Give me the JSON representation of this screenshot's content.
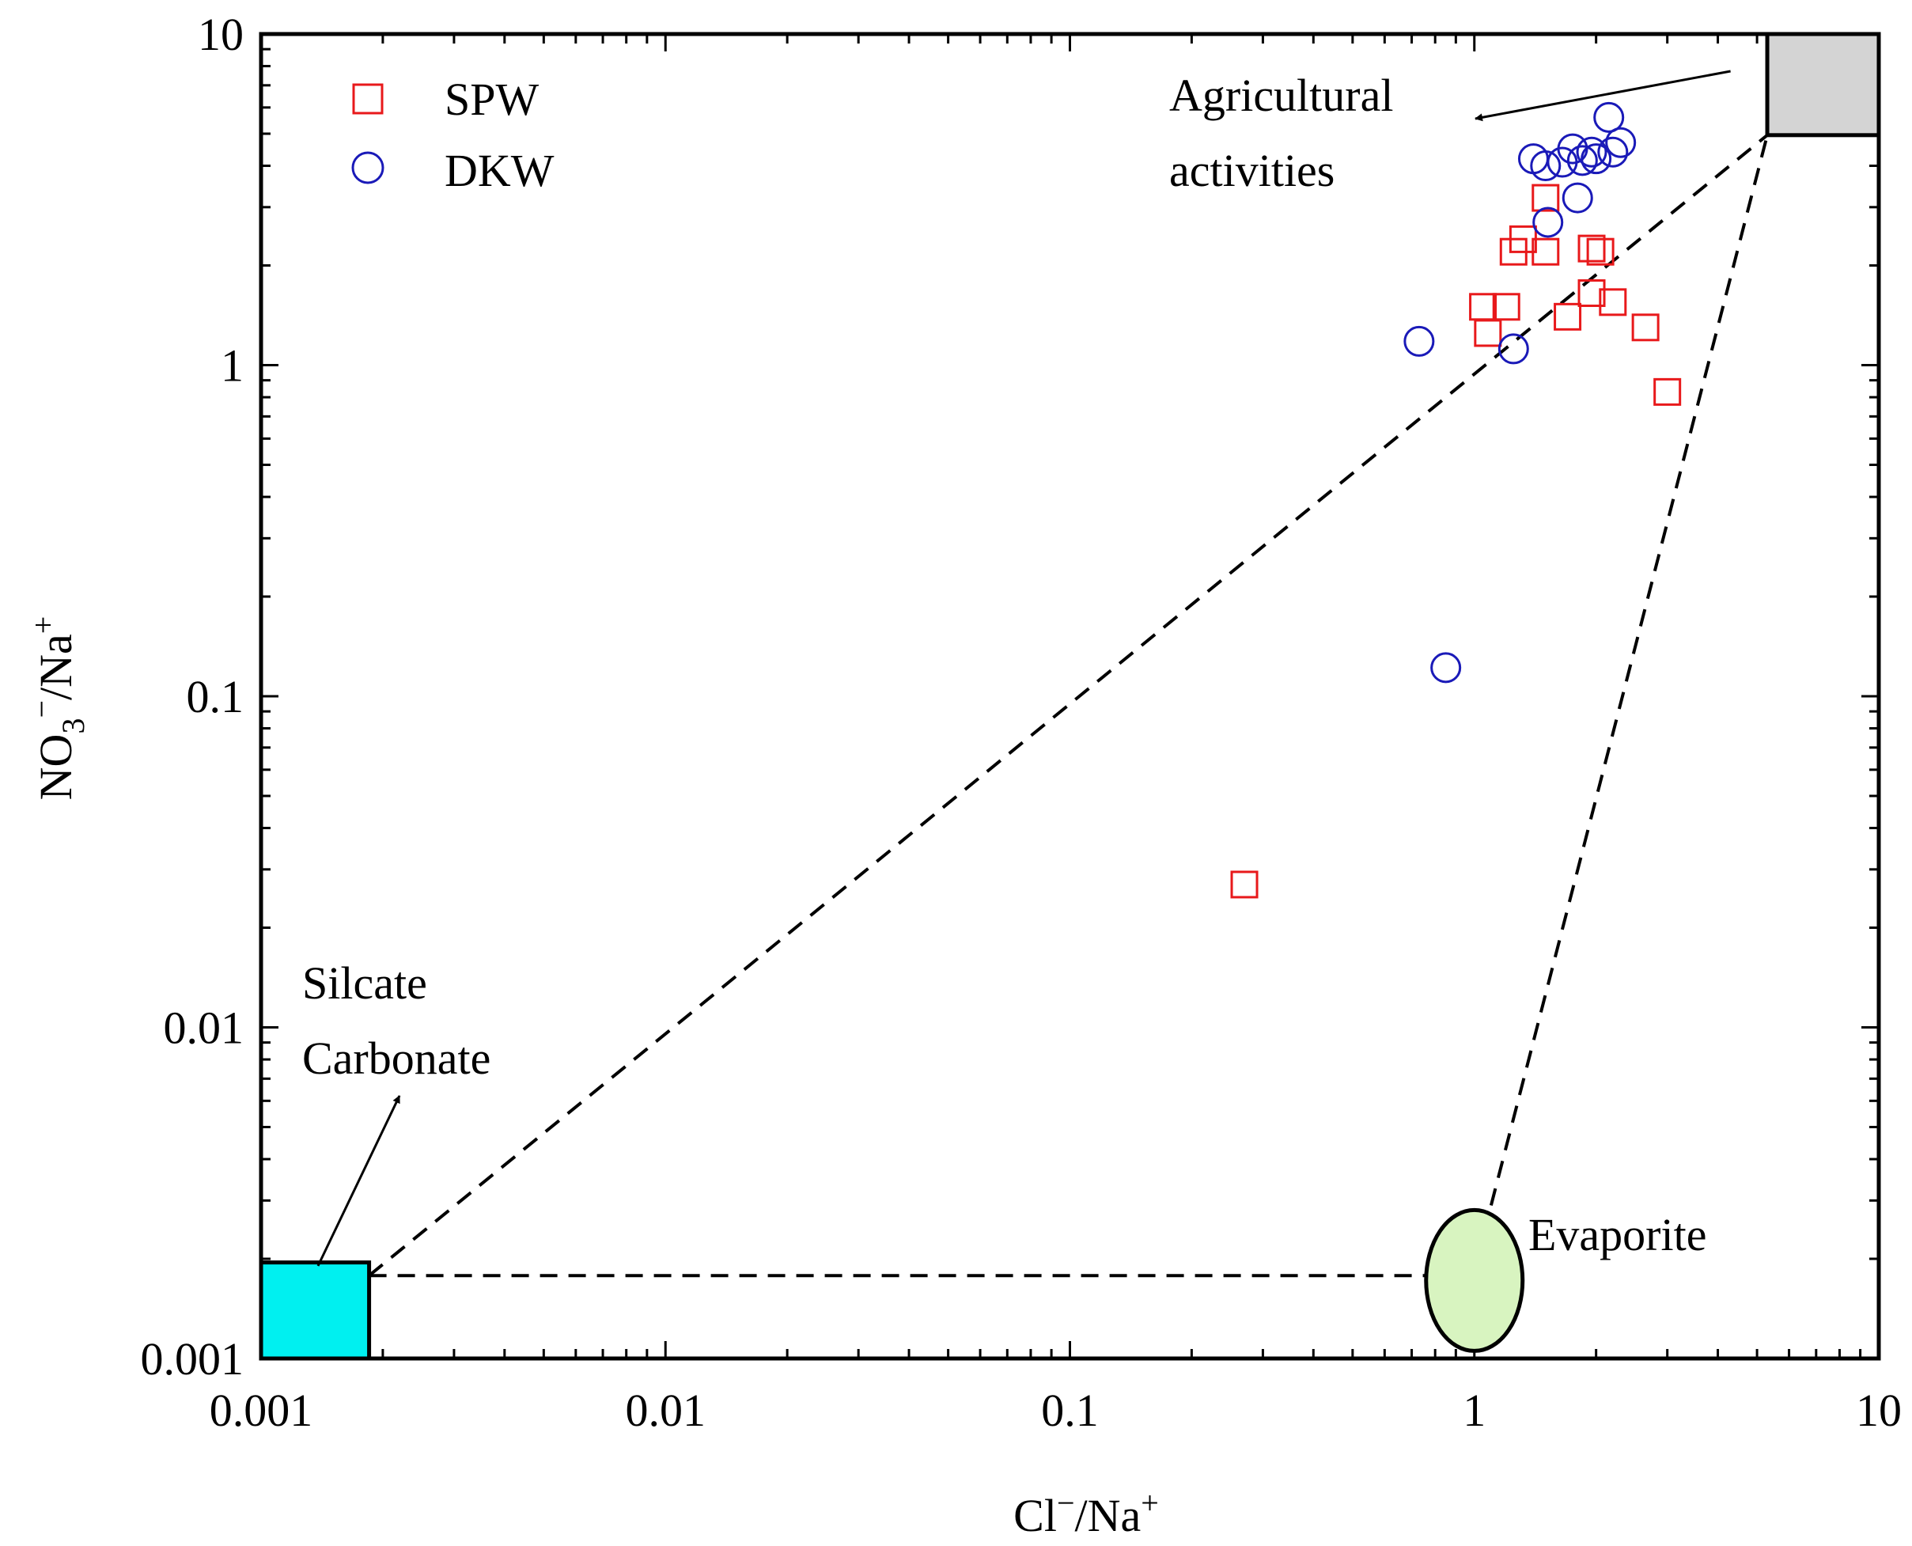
{
  "chart_data": {
    "type": "scatter",
    "x_scale": "log",
    "y_scale": "log",
    "xlim": [
      0.001,
      10
    ],
    "ylim": [
      0.001,
      10
    ],
    "x_ticks": [
      {
        "value": 0.001,
        "label": "0.001"
      },
      {
        "value": 0.01,
        "label": "0.01"
      },
      {
        "value": 0.1,
        "label": "0.1"
      },
      {
        "value": 1,
        "label": "1"
      },
      {
        "value": 10,
        "label": "10"
      }
    ],
    "y_ticks": [
      {
        "value": 0.001,
        "label": "0.001"
      },
      {
        "value": 0.01,
        "label": "0.01"
      },
      {
        "value": 0.1,
        "label": "0.1"
      },
      {
        "value": 1,
        "label": "1"
      },
      {
        "value": 10,
        "label": "10"
      }
    ],
    "xlabel": {
      "base": "Cl",
      "sup1": "−",
      "mid": "/Na",
      "sup2": "+"
    },
    "ylabel": {
      "base": "NO",
      "sub": "3",
      "sup1": "−",
      "mid": "/Na",
      "sup2": "+"
    },
    "legend_position": "top-left",
    "series": [
      {
        "name": "SPW",
        "marker": "square",
        "color": "#e8191b",
        "points": [
          [
            0.27,
            0.027
          ],
          [
            1.05,
            1.5
          ],
          [
            1.08,
            1.25
          ],
          [
            1.2,
            1.5
          ],
          [
            1.25,
            2.2
          ],
          [
            1.32,
            2.4
          ],
          [
            1.5,
            3.2
          ],
          [
            1.5,
            2.2
          ],
          [
            1.7,
            1.4
          ],
          [
            1.95,
            2.25
          ],
          [
            1.95,
            1.65
          ],
          [
            2.05,
            2.2
          ],
          [
            2.2,
            1.55
          ],
          [
            2.65,
            1.3
          ],
          [
            3.0,
            0.83
          ]
        ]
      },
      {
        "name": "DKW",
        "marker": "circle",
        "color": "#1a1ab8",
        "points": [
          [
            0.73,
            1.18
          ],
          [
            0.85,
            0.122
          ],
          [
            1.25,
            1.12
          ],
          [
            1.4,
            4.2
          ],
          [
            1.5,
            4.0
          ],
          [
            1.52,
            2.7
          ],
          [
            1.65,
            4.1
          ],
          [
            1.75,
            4.5
          ],
          [
            1.8,
            3.2
          ],
          [
            1.85,
            4.15
          ],
          [
            1.95,
            4.4
          ],
          [
            2.0,
            4.2
          ],
          [
            2.15,
            5.6
          ],
          [
            2.2,
            4.4
          ],
          [
            2.3,
            4.7
          ]
        ]
      }
    ],
    "end_members": [
      {
        "name": "Silcate Carbonate",
        "shape": "rect",
        "color": "#00f0f0",
        "x_range": [
          0.001,
          0.00185
        ],
        "y_range": [
          0.001,
          0.00195
        ]
      },
      {
        "name": "Agricultural activities",
        "shape": "rect",
        "color": "#d4d4d4",
        "x_range": [
          5.3,
          10
        ],
        "y_range": [
          4.95,
          10
        ]
      },
      {
        "name": "Evaporite",
        "shape": "ellipse",
        "color": "#d8f4c0",
        "center": [
          1.0,
          0.00172
        ]
      }
    ],
    "mixing_lines": [
      {
        "from": [
          0.00185,
          0.00178
        ],
        "to": [
          5.3,
          4.95
        ]
      },
      {
        "from": [
          0.00185,
          0.00178
        ],
        "to": [
          0.88,
          0.00178
        ]
      },
      {
        "from": [
          1.1,
          0.0029
        ],
        "to": [
          5.3,
          4.95
        ]
      }
    ],
    "annotations": [
      {
        "lines": [
          "Silcate",
          "Carbonate"
        ],
        "target": "end_member_0"
      },
      {
        "lines": [
          "Agricultural",
          "activities"
        ],
        "target": "end_member_1"
      },
      {
        "lines": [
          "Evaporite"
        ],
        "target": "end_member_2"
      }
    ]
  },
  "colors": {
    "spw": "#e8191b",
    "dkw": "#1a1ab8",
    "silicate_box": "#00f0f0",
    "agri_box": "#d4d4d4",
    "evaporite_fill": "#d8f4c0"
  }
}
